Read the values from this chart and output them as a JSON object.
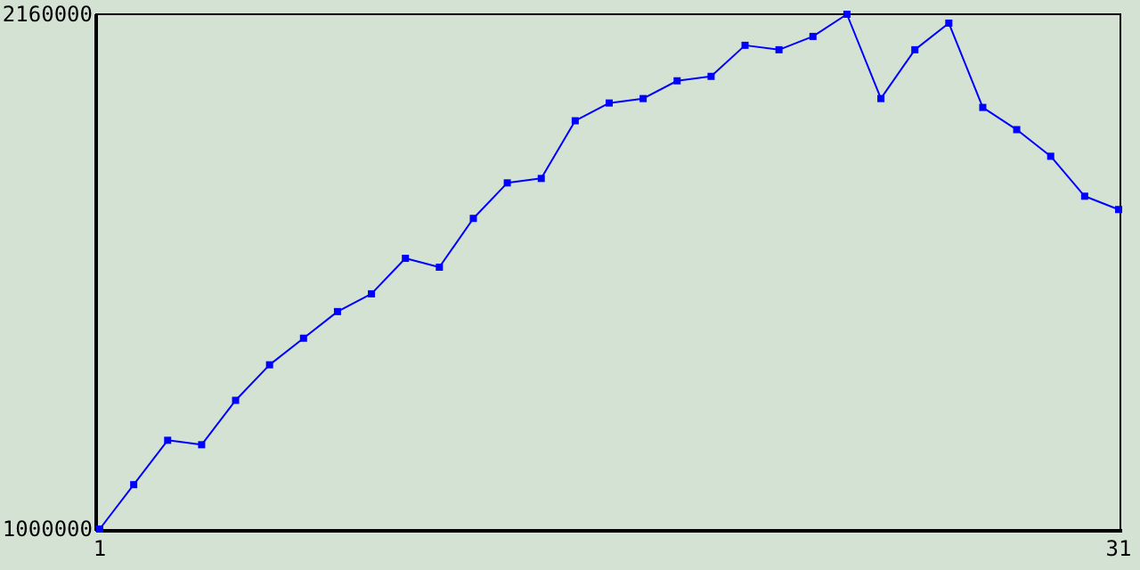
{
  "chart_data": {
    "type": "line",
    "x": [
      1,
      2,
      3,
      4,
      5,
      6,
      7,
      8,
      9,
      10,
      11,
      12,
      13,
      14,
      15,
      16,
      17,
      18,
      19,
      20,
      21,
      22,
      23,
      24,
      25,
      26,
      27,
      28,
      29,
      30,
      31
    ],
    "series": [
      {
        "color": "#0000ff",
        "values": [
          1000000,
          1100000,
          1200000,
          1190000,
          1290000,
          1370000,
          1430000,
          1490000,
          1530000,
          1610000,
          1590000,
          1700000,
          1780000,
          1790000,
          1920000,
          1960000,
          1970000,
          2010000,
          2020000,
          2090000,
          2080000,
          2110000,
          2160000,
          1970000,
          2080000,
          2140000,
          1950000,
          1900000,
          1840000,
          1750000,
          1720000
        ]
      }
    ],
    "xlim": [
      1,
      31
    ],
    "xticks": [
      1,
      31
    ],
    "ylim": [
      1000000,
      2160000
    ],
    "yticks": [
      1000000,
      2160000
    ],
    "grid": false,
    "marker": "square",
    "line_style": "solid"
  }
}
